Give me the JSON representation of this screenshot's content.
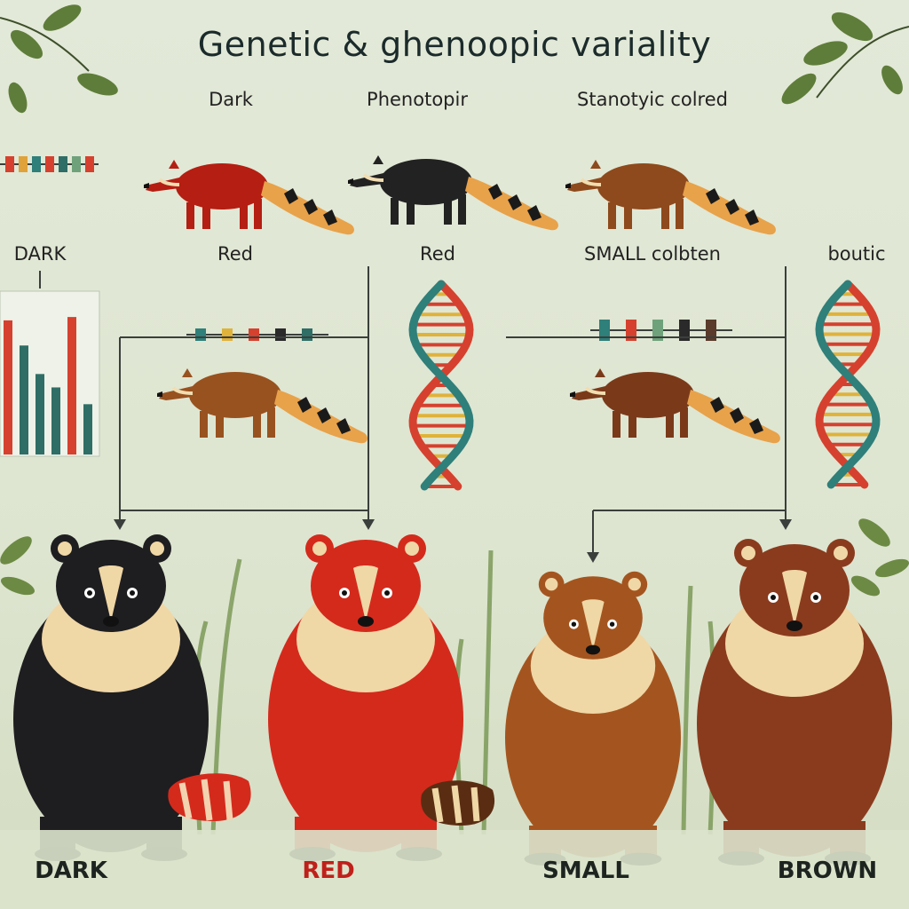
{
  "title": "Genetic & ghenoopic variality",
  "headers": [
    "Dark",
    "Phenotopir",
    "Stanotyic colred"
  ],
  "mid_labels": [
    "DARK",
    "Red",
    "Red",
    "SMALL colbten",
    "boutic"
  ],
  "bottom_labels": [
    "DARK",
    "RED",
    "SMALL",
    "BROWN"
  ],
  "colors": {
    "background": "#dfe6d4",
    "dark_coat": "#1d1d1f",
    "red_coat": "#d42a1c",
    "small_coat": "#a4551f",
    "brown_coat": "#8a3b1e",
    "red_label": "#c0201a",
    "dna_red": "#d5412e",
    "dna_teal": "#2f7f7a"
  },
  "bar_chart": {
    "values": [
      8,
      6.5,
      4.8,
      4,
      8.2,
      3
    ],
    "colors": [
      "#d5412e",
      "#2f6e66",
      "#2f6e66",
      "#2f6e66",
      "#d5412e",
      "#2f6e66"
    ]
  },
  "gene_markers": {
    "left": [
      "#d5412e",
      "#e0a23a",
      "#2f7f7a",
      "#d5412e",
      "#2f6e66",
      "#6fa27a",
      "#d5412e"
    ],
    "middle": [
      "#2f7f7a",
      "#e0b23a",
      "#d5412e",
      "#2a2a2a",
      "#2f6e66"
    ],
    "right": [
      "#2f7f7a",
      "#d5412e",
      "#6fa27a",
      "#2a2a2a",
      "#5a3a2a"
    ]
  }
}
